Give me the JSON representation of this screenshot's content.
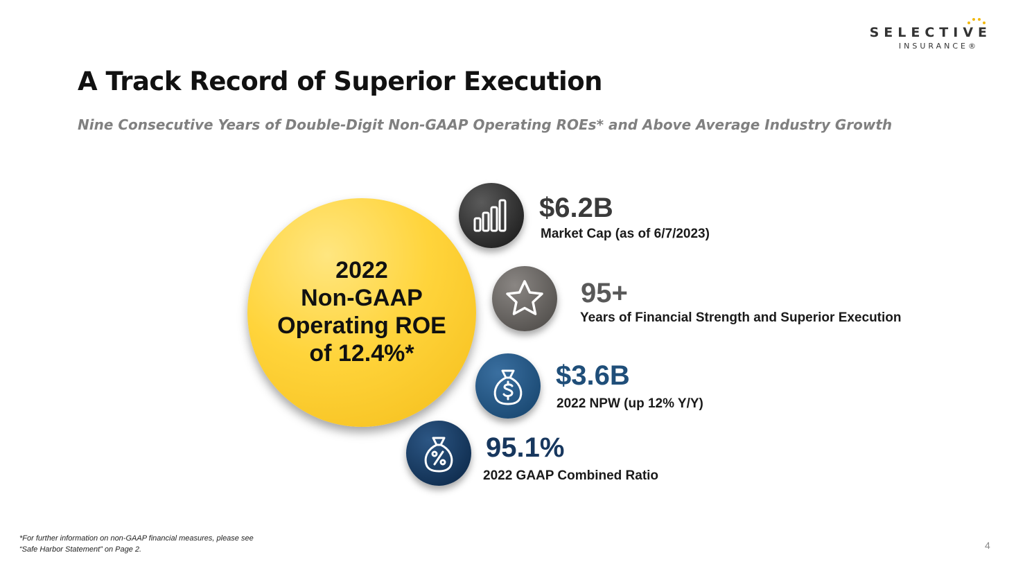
{
  "logo": {
    "name": "SELECTIVE",
    "sub": "INSURANCE®"
  },
  "title": "A Track Record of Superior Execution",
  "subtitle": "Nine Consecutive Years of Double-Digit Non-GAAP Operating ROEs* and Above Average Industry Growth",
  "highlight": {
    "line1": "2022",
    "line2": "Non-GAAP",
    "line3": "Operating ROE",
    "line4": "of 12.4%*"
  },
  "stats": [
    {
      "value": "$6.2B",
      "label": "Market Cap (as of 6/7/2023)",
      "icon": "bar-chart-icon",
      "color": "#3a3a3a"
    },
    {
      "value": "95+",
      "label": "Years of Financial Strength and Superior Execution",
      "icon": "star-icon",
      "color": "#595959"
    },
    {
      "value": "$3.6B",
      "label": "2022 NPW (up 12% Y/Y)",
      "icon": "money-bag-dollar-icon",
      "color": "#1f4e79"
    },
    {
      "value": "95.1%",
      "label": "2022 GAAP Combined Ratio",
      "icon": "money-bag-percent-icon",
      "color": "#17375e"
    }
  ],
  "colors": {
    "accent_yellow": "#ffd43b",
    "title": "#111111",
    "subtitle": "#808080"
  },
  "footnote": {
    "line1": "*For further information on non-GAAP financial measures, please see",
    "line2": "“Safe Harbor Statement” on Page 2."
  },
  "page_number": "4"
}
